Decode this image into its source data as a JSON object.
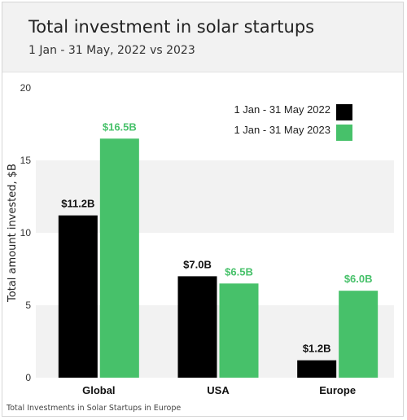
{
  "header": {
    "title": "Total investment in solar startups",
    "subtitle": "1 Jan - 31 May, 2022 vs 2023"
  },
  "caption": "Total Investments in Solar Startups in Europe",
  "colors": {
    "series_2022": "#000000",
    "series_2023": "#47c16a",
    "band": "#f2f2f2"
  },
  "chart_data": {
    "type": "bar",
    "title": "Total investment in solar startups",
    "subtitle": "1 Jan - 31 May, 2022 vs 2023",
    "ylabel": "Total amount invested, $B",
    "xlabel": "",
    "ylim": [
      0,
      20
    ],
    "yticks": [
      "0",
      "5",
      "10",
      "15",
      "20"
    ],
    "categories": [
      "Global",
      "USA",
      "Europe"
    ],
    "series": [
      {
        "name": "1 Jan - 31 May 2022",
        "values": [
          11.2,
          7.0,
          1.2
        ],
        "labels": [
          "$11.2B",
          "$7.0B",
          "$1.2B"
        ],
        "color": "#000000"
      },
      {
        "name": "1 Jan - 31 May 2023",
        "values": [
          16.5,
          6.5,
          6.0
        ],
        "labels": [
          "$16.5B",
          "$6.5B",
          "$6.0B"
        ],
        "color": "#47c16a"
      }
    ],
    "legend": "top-right",
    "grid": false,
    "background_bands": true
  }
}
